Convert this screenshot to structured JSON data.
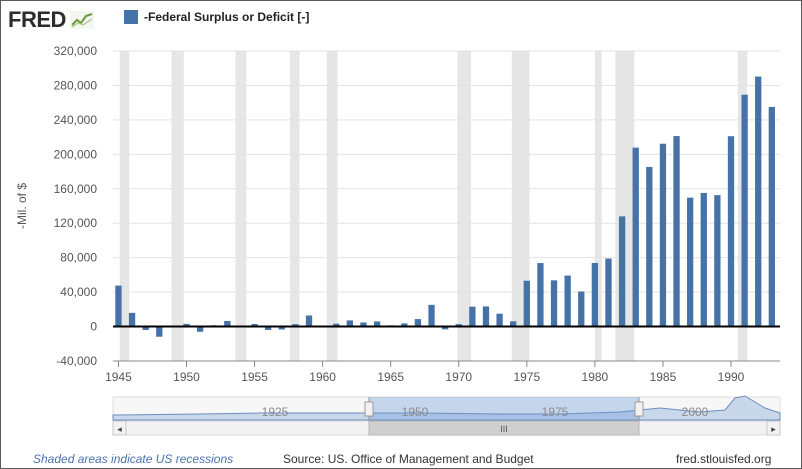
{
  "header": {
    "logo_text": "FRED",
    "legend_label": "-Federal Surplus or Deficit [-]",
    "series_color": "#4572a7"
  },
  "chart_data": {
    "type": "bar",
    "ylabel": "-Mil. of $",
    "xlabel": "",
    "ylim": [
      -40000,
      320000
    ],
    "yticks": [
      -40000,
      0,
      40000,
      80000,
      120000,
      160000,
      200000,
      240000,
      280000,
      320000
    ],
    "ytick_labels": [
      "-40,000",
      "0",
      "40,000",
      "80,000",
      "120,000",
      "160,000",
      "200,000",
      "240,000",
      "280,000",
      "320,000"
    ],
    "xlim": [
      1944.6,
      1993.6
    ],
    "xticks": [
      1945,
      1950,
      1955,
      1960,
      1965,
      1970,
      1975,
      1980,
      1985,
      1990
    ],
    "xtick_labels": [
      "1945",
      "1950",
      "1955",
      "1960",
      "1965",
      "1970",
      "1975",
      "1980",
      "1985",
      "1990"
    ],
    "grid": "horizontal",
    "legend_position": "top-left",
    "recessions": [
      [
        1945.1,
        1945.8
      ],
      [
        1948.9,
        1949.8
      ],
      [
        1953.6,
        1954.4
      ],
      [
        1957.6,
        1958.3
      ],
      [
        1960.3,
        1961.1
      ],
      [
        1969.9,
        1970.9
      ],
      [
        1973.9,
        1975.2
      ],
      [
        1980.0,
        1980.5
      ],
      [
        1981.5,
        1982.9
      ],
      [
        1990.5,
        1991.2
      ]
    ],
    "series": [
      {
        "name": "-Federal Surplus or Deficit [-]",
        "x": [
          1945,
          1946,
          1947,
          1948,
          1949,
          1950,
          1951,
          1952,
          1953,
          1954,
          1955,
          1956,
          1957,
          1958,
          1959,
          1960,
          1961,
          1962,
          1963,
          1964,
          1965,
          1966,
          1967,
          1968,
          1969,
          1970,
          1971,
          1972,
          1973,
          1974,
          1975,
          1976,
          1977,
          1978,
          1979,
          1980,
          1981,
          1982,
          1983,
          1984,
          1985,
          1986,
          1987,
          1988,
          1989,
          1990,
          1991,
          1992,
          1993
        ],
        "values": [
          47553,
          15936,
          -4018,
          -11796,
          580,
          3119,
          -6102,
          1519,
          6493,
          1154,
          2993,
          -3947,
          -3412,
          2769,
          12849,
          -301,
          3335,
          7146,
          4756,
          5915,
          1411,
          3698,
          8643,
          25161,
          -3242,
          2842,
          23033,
          23373,
          14908,
          6135,
          53242,
          73732,
          53659,
          59185,
          40726,
          73830,
          78968,
          127977,
          207802,
          185367,
          212308,
          221227,
          149730,
          155178,
          152639,
          221036,
          269238,
          290321,
          255051
        ]
      }
    ]
  },
  "navigator": {
    "labels": [
      "1925",
      "1950",
      "1975",
      "2000"
    ],
    "scroll_grip": "III",
    "left_arrow": "◂",
    "right_arrow": "▸"
  },
  "footer": {
    "recession_note": "Shaded areas indicate US recessions",
    "source": "Source: US. Office of Management and Budget",
    "site": "fred.stlouisfed.org"
  }
}
